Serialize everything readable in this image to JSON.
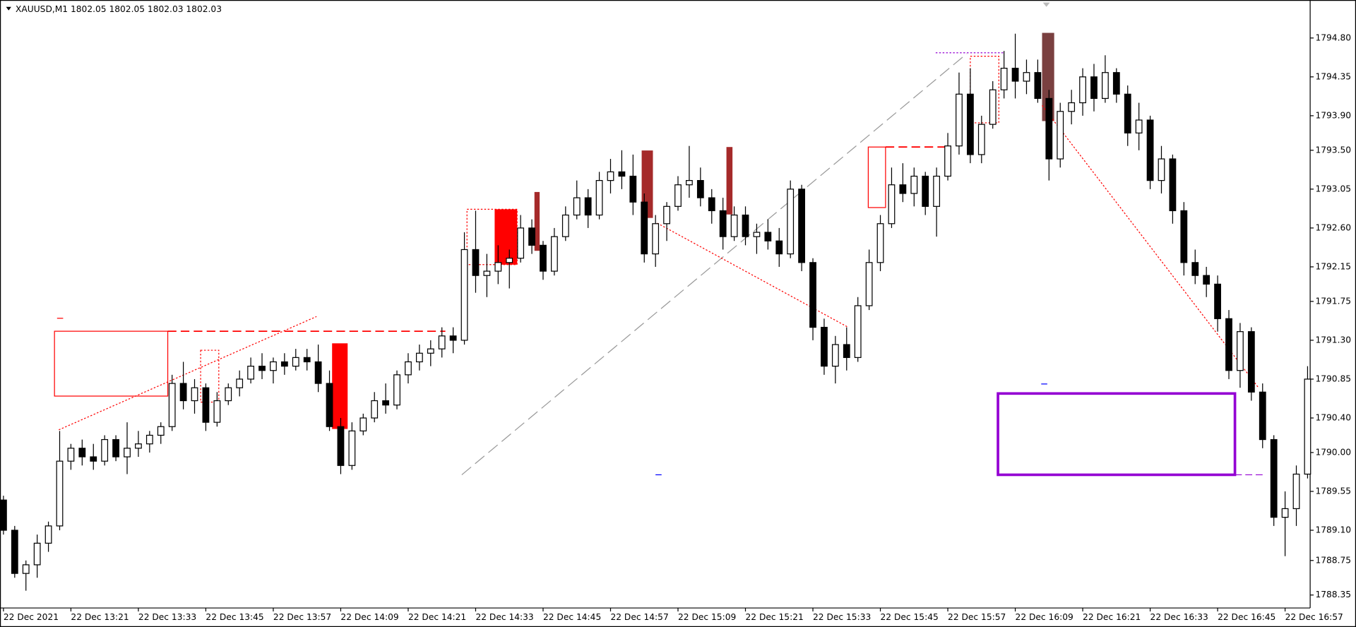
{
  "chart_data": {
    "type": "candlestick",
    "title": "XAUUSD,M1  1802.05 1802.05 1802.03 1802.03",
    "open": [
      1789.45,
      1789.1,
      1788.6,
      1788.7,
      1788.95,
      1789.15,
      1789.9,
      1790.05,
      1789.95,
      1789.9,
      1790.15,
      1789.95,
      1790.05,
      1790.1,
      1790.2,
      1790.3,
      1790.8,
      1790.6,
      1790.75,
      1790.35,
      1790.6,
      1790.75,
      1790.85,
      1791.0,
      1790.95,
      1791.05,
      1791.0,
      1791.1,
      1791.05,
      1790.8,
      1790.3,
      1789.85,
      1790.25,
      1790.4,
      1790.6,
      1790.55,
      1790.9,
      1791.05,
      1791.15,
      1791.2,
      1791.35,
      1791.3,
      1792.35,
      1792.05,
      1792.1,
      1792.2,
      1792.25,
      1792.6,
      1792.4,
      1792.1,
      1792.5,
      1792.75,
      1792.95,
      1792.75,
      1793.15,
      1793.25,
      1793.2,
      1792.9,
      1792.3,
      1792.65,
      1792.85,
      1793.1,
      1793.15,
      1792.95,
      1792.8,
      1792.5,
      1792.75,
      1792.5,
      1792.55,
      1792.45,
      1792.3,
      1793.05,
      1792.2,
      1791.45,
      1791.0,
      1791.25,
      1791.1,
      1791.7,
      1792.2,
      1792.65,
      1793.1,
      1793.0,
      1793.2,
      1792.85,
      1793.2,
      1793.55,
      1794.15,
      1793.45,
      1793.8,
      1794.2,
      1794.45,
      1794.3,
      1794.4,
      1794.1,
      1793.4,
      1793.95,
      1794.05,
      1794.35,
      1794.1,
      1794.4,
      1794.15,
      1793.7,
      1793.85,
      1793.15,
      1793.4,
      1792.8,
      1792.2,
      1792.05,
      1791.95,
      1791.55,
      1790.95,
      1791.4,
      1790.7,
      1790.15,
      1789.25,
      1789.35,
      1789.75
    ],
    "high": [
      1789.5,
      1789.15,
      1788.75,
      1789.05,
      1789.2,
      1790.25,
      1790.1,
      1790.15,
      1790.1,
      1790.2,
      1790.2,
      1790.35,
      1790.25,
      1790.25,
      1790.35,
      1790.9,
      1791.05,
      1790.85,
      1790.8,
      1790.7,
      1790.8,
      1790.95,
      1791.1,
      1791.15,
      1791.1,
      1791.15,
      1791.2,
      1791.2,
      1791.25,
      1790.95,
      1790.4,
      1790.35,
      1790.45,
      1790.7,
      1790.8,
      1790.95,
      1791.15,
      1791.25,
      1791.3,
      1791.45,
      1791.45,
      1792.55,
      1792.8,
      1792.3,
      1792.4,
      1792.35,
      1792.75,
      1792.7,
      1792.45,
      1792.6,
      1792.85,
      1793.15,
      1793.05,
      1793.25,
      1793.4,
      1793.5,
      1793.45,
      1793.0,
      1792.75,
      1792.9,
      1793.2,
      1793.55,
      1793.3,
      1793.05,
      1792.95,
      1792.85,
      1792.85,
      1792.65,
      1792.7,
      1792.6,
      1793.15,
      1793.1,
      1792.25,
      1791.55,
      1791.35,
      1791.45,
      1791.8,
      1792.35,
      1792.75,
      1793.3,
      1793.35,
      1793.3,
      1793.25,
      1793.3,
      1793.7,
      1794.4,
      1794.45,
      1793.9,
      1794.3,
      1794.65,
      1794.85,
      1794.55,
      1794.55,
      1794.2,
      1794.05,
      1794.2,
      1794.45,
      1794.5,
      1794.6,
      1794.45,
      1794.25,
      1794.05,
      1793.9,
      1793.55,
      1793.45,
      1792.9,
      1792.35,
      1792.15,
      1792.05,
      1791.65,
      1791.5,
      1791.45,
      1790.8,
      1790.2,
      1789.55,
      1789.85,
      1791.0
    ],
    "low": [
      1789.05,
      1788.55,
      1788.4,
      1788.55,
      1788.85,
      1789.1,
      1789.8,
      1789.85,
      1789.8,
      1789.85,
      1789.9,
      1789.75,
      1789.95,
      1790.0,
      1790.1,
      1790.25,
      1790.5,
      1790.45,
      1790.25,
      1790.3,
      1790.55,
      1790.65,
      1790.8,
      1790.85,
      1790.8,
      1790.9,
      1790.95,
      1790.95,
      1790.7,
      1790.25,
      1789.75,
      1789.8,
      1790.2,
      1790.35,
      1790.45,
      1790.5,
      1790.8,
      1790.95,
      1791.0,
      1791.1,
      1791.15,
      1791.25,
      1791.85,
      1791.8,
      1791.95,
      1791.9,
      1792.2,
      1792.3,
      1792.0,
      1792.05,
      1792.45,
      1792.7,
      1792.6,
      1792.7,
      1793.0,
      1793.05,
      1792.75,
      1792.2,
      1792.15,
      1792.45,
      1792.8,
      1792.95,
      1792.85,
      1792.65,
      1792.35,
      1792.45,
      1792.4,
      1792.3,
      1792.35,
      1792.15,
      1792.25,
      1792.1,
      1791.3,
      1790.9,
      1790.8,
      1790.95,
      1791.05,
      1791.65,
      1792.1,
      1792.6,
      1792.9,
      1792.85,
      1792.75,
      1792.5,
      1793.15,
      1793.45,
      1793.35,
      1793.35,
      1793.75,
      1794.1,
      1794.1,
      1794.15,
      1794.05,
      1793.15,
      1793.3,
      1793.8,
      1793.9,
      1793.95,
      1794.05,
      1794.05,
      1793.55,
      1793.5,
      1793.05,
      1793.0,
      1792.65,
      1792.05,
      1791.95,
      1791.8,
      1791.4,
      1790.85,
      1790.75,
      1790.6,
      1790.05,
      1789.15,
      1788.8,
      1789.15,
      1789.7
    ],
    "close": [
      1789.1,
      1788.6,
      1788.7,
      1788.95,
      1789.15,
      1789.9,
      1790.05,
      1789.95,
      1789.9,
      1790.15,
      1789.95,
      1790.05,
      1790.1,
      1790.2,
      1790.3,
      1790.8,
      1790.6,
      1790.75,
      1790.35,
      1790.6,
      1790.75,
      1790.85,
      1791.0,
      1790.95,
      1791.05,
      1791.0,
      1791.1,
      1791.05,
      1790.8,
      1790.3,
      1789.85,
      1790.25,
      1790.4,
      1790.6,
      1790.55,
      1790.9,
      1791.05,
      1791.15,
      1791.2,
      1791.35,
      1791.3,
      1792.35,
      1792.05,
      1792.1,
      1792.2,
      1792.25,
      1792.6,
      1792.4,
      1792.1,
      1792.5,
      1792.75,
      1792.95,
      1792.75,
      1793.15,
      1793.25,
      1793.2,
      1792.9,
      1792.3,
      1792.65,
      1792.85,
      1793.1,
      1793.15,
      1792.95,
      1792.8,
      1792.5,
      1792.75,
      1792.5,
      1792.55,
      1792.45,
      1792.3,
      1793.05,
      1792.2,
      1791.45,
      1791.0,
      1791.25,
      1791.1,
      1791.7,
      1792.2,
      1792.65,
      1793.1,
      1793.0,
      1793.2,
      1792.85,
      1793.2,
      1793.55,
      1794.15,
      1793.45,
      1793.8,
      1794.2,
      1794.45,
      1794.3,
      1794.4,
      1794.1,
      1793.4,
      1793.95,
      1794.05,
      1794.35,
      1794.1,
      1794.4,
      1794.15,
      1793.7,
      1793.85,
      1793.15,
      1793.4,
      1792.8,
      1792.2,
      1792.05,
      1791.95,
      1791.55,
      1790.95,
      1791.4,
      1790.7,
      1790.15,
      1789.25,
      1789.35,
      1789.75,
      1790.85
    ],
    "xlim": [
      0,
      116
    ],
    "xticks": [
      {
        "value": 0,
        "label": "22 Dec 2021"
      },
      {
        "value": 6,
        "label": "22 Dec 13:21"
      },
      {
        "value": 12,
        "label": "22 Dec 13:33"
      },
      {
        "value": 18,
        "label": "22 Dec 13:45"
      },
      {
        "value": 24,
        "label": "22 Dec 13:57"
      },
      {
        "value": 30,
        "label": "22 Dec 14:09"
      },
      {
        "value": 36,
        "label": "22 Dec 14:21"
      },
      {
        "value": 42,
        "label": "22 Dec 14:33"
      },
      {
        "value": 48,
        "label": "22 Dec 14:45"
      },
      {
        "value": 54,
        "label": "22 Dec 14:57"
      },
      {
        "value": 60,
        "label": "22 Dec 15:09"
      },
      {
        "value": 66,
        "label": "22 Dec 15:21"
      },
      {
        "value": 72,
        "label": "22 Dec 15:33"
      },
      {
        "value": 78,
        "label": "22 Dec 15:45"
      },
      {
        "value": 84,
        "label": "22 Dec 15:57"
      },
      {
        "value": 90,
        "label": "22 Dec 16:09"
      },
      {
        "value": 96,
        "label": "22 Dec 16:21"
      },
      {
        "value": 102,
        "label": "22 Dec 16:33"
      },
      {
        "value": 108,
        "label": "22 Dec 16:45"
      },
      {
        "value": 114,
        "label": "22 Dec 16:57"
      }
    ],
    "ylim": [
      1788.2,
      1795.24
    ],
    "yticks": [
      {
        "value": 1794.8,
        "label": "1794.80"
      },
      1794.35,
      {
        "value": 1793.9,
        "label": "1793.90"
      },
      {
        "value": 1793.5,
        "label": "1793.50"
      },
      1793.05,
      {
        "value": 1792.6,
        "label": "1792.60"
      },
      1792.15,
      1791.75,
      {
        "value": 1791.3,
        "label": "1791.30"
      },
      1790.85,
      {
        "value": 1790.4,
        "label": "1790.40"
      },
      {
        "value": 1790,
        "label": "1790.00"
      },
      1789.55,
      {
        "value": 1789.1,
        "label": "1789.10"
      },
      1788.75,
      1788.35
    ],
    "bull_color": "#ffffff",
    "bear_color": "#000000"
  }
}
